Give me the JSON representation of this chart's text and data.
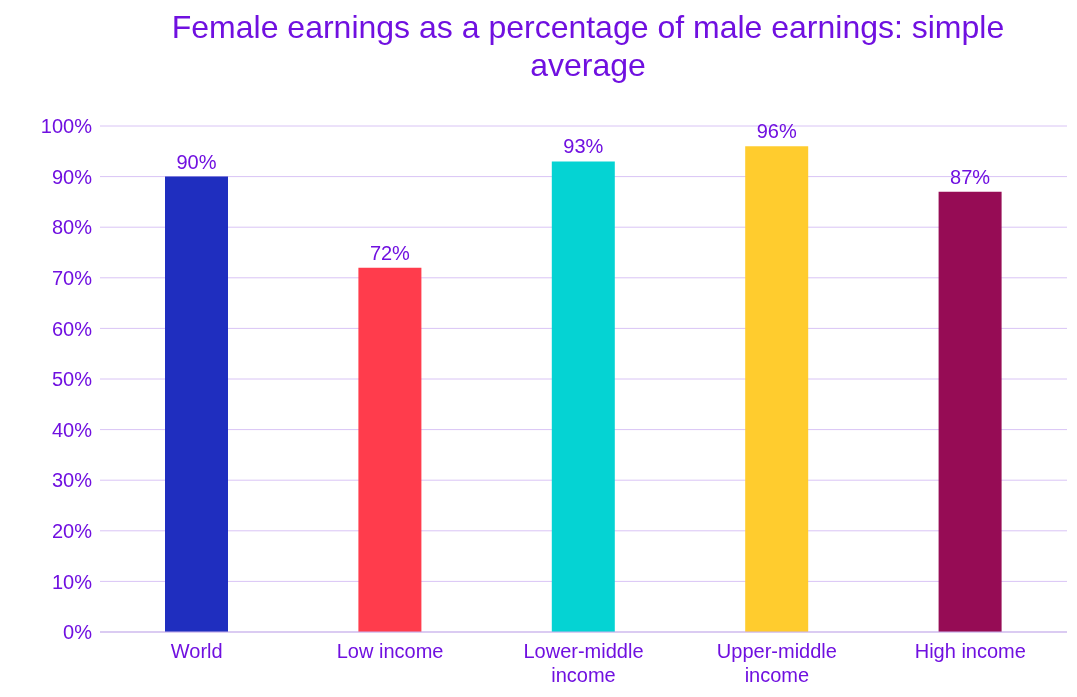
{
  "chart_data": {
    "type": "bar",
    "title": "Female earnings as a percentage of male earnings: simple average",
    "categories": [
      "World",
      "Low income",
      "Lower-middle income",
      "Upper-middle income",
      "High income"
    ],
    "values": [
      90,
      72,
      93,
      96,
      87
    ],
    "colors": [
      "#1f2ebf",
      "#ff3c4c",
      "#05d3d3",
      "#ffcc2e",
      "#960c55"
    ],
    "value_labels": [
      "90%",
      "72%",
      "93%",
      "96%",
      "87%"
    ],
    "ylim": [
      0,
      100
    ],
    "yticks": [
      {
        "value": 0,
        "label": "0%"
      },
      {
        "value": 10,
        "label": "10%"
      },
      {
        "value": 20,
        "label": "20%"
      },
      {
        "value": 30,
        "label": "30%"
      },
      {
        "value": 40,
        "label": "40%"
      },
      {
        "value": 50,
        "label": "50%"
      },
      {
        "value": 60,
        "label": "60%"
      },
      {
        "value": 70,
        "label": "70%"
      },
      {
        "value": 80,
        "label": "80%"
      },
      {
        "value": 90,
        "label": "90%"
      },
      {
        "value": 100,
        "label": "100%"
      }
    ],
    "grid": "y",
    "legend": false
  }
}
